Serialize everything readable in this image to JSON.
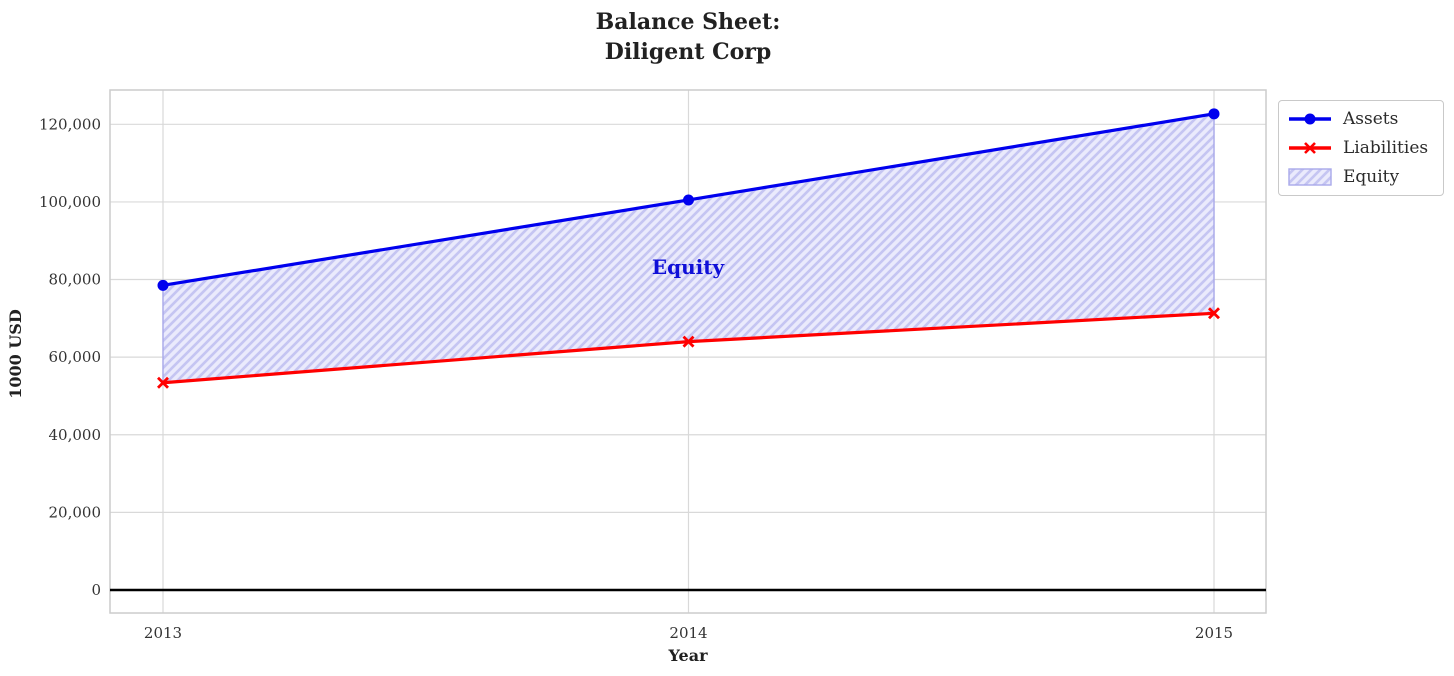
{
  "chart_data": {
    "type": "line",
    "title": "Balance Sheet:\nDiligent Corp",
    "title_lines": [
      "Balance Sheet:",
      "Diligent Corp"
    ],
    "xlabel": "Year",
    "ylabel": "1000 USD",
    "x": [
      2013,
      2014,
      2015
    ],
    "xtick_labels": [
      "2013",
      "2014",
      "2015"
    ],
    "yticks": [
      0,
      20000,
      40000,
      60000,
      80000,
      100000,
      120000
    ],
    "ytick_labels": [
      "0",
      "20,000",
      "40,000",
      "60,000",
      "80,000",
      "100,000",
      "120,000"
    ],
    "ylim": [
      -5900,
      128800
    ],
    "grid": true,
    "zero_line": true,
    "series": [
      {
        "name": "Assets",
        "values": [
          78500,
          100500,
          122700
        ],
        "color": "#0000ee",
        "marker": "circle"
      },
      {
        "name": "Liabilities",
        "values": [
          53400,
          64000,
          71300
        ],
        "color": "#ff0000",
        "marker": "x"
      }
    ],
    "fill_between": {
      "name": "Equity",
      "upper": "Assets",
      "lower": "Liabilities",
      "values": [
        25100,
        36500,
        51400
      ],
      "fill_color": "#eaeafc",
      "hatch_color": "#c5c5f2",
      "edge_color": "#a9a9ea"
    },
    "annotation": {
      "text": "Equity",
      "x": 2014,
      "y": 82700,
      "color": "#0f0fd8"
    },
    "legend_position": "upper right outside",
    "colors": {
      "grid": "#d9d9d9",
      "spine": "#cccccc",
      "zero_line": "#000000",
      "tick_text": "#333333"
    }
  }
}
